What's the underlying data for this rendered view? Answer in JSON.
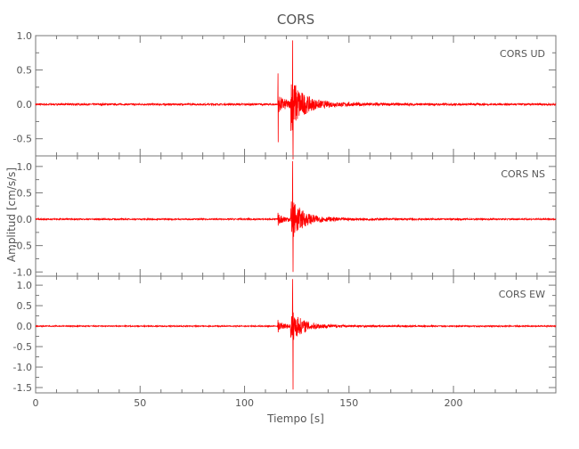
{
  "chart_data": {
    "type": "line",
    "title": "CORS",
    "xlabel": "Tiempo [s]",
    "ylabel": "Amplitud [cm/s/s]",
    "xlim": [
      0,
      249
    ],
    "xticks": [
      0,
      50,
      100,
      150,
      200
    ],
    "grid": false,
    "line_color": "#ff0000",
    "panels": [
      {
        "label": "CORS   UD",
        "ylim": [
          -0.75,
          1.0
        ],
        "yticks": [
          -0.5,
          0.0,
          0.5,
          1.0
        ],
        "events": [
          {
            "time": 116,
            "max": 0.45,
            "min": -0.55
          },
          {
            "time": 123,
            "max": 0.93,
            "min": -0.8
          }
        ]
      },
      {
        "label": "CORS   NS",
        "ylim": [
          -1.08,
          1.2
        ],
        "yticks": [
          -1.0,
          -0.5,
          0.0,
          0.5,
          1.0
        ],
        "events": [
          {
            "time": 116,
            "max": 0.12,
            "min": -0.12
          },
          {
            "time": 123,
            "max": 1.1,
            "min": -1.0
          }
        ]
      },
      {
        "label": "CORS   EW",
        "ylim": [
          -1.63,
          1.22
        ],
        "yticks": [
          -1.5,
          -1.0,
          -0.5,
          0.0,
          0.5,
          1.0
        ],
        "events": [
          {
            "time": 116,
            "max": 0.15,
            "min": -0.15
          },
          {
            "time": 123,
            "max": 1.15,
            "min": -1.55
          }
        ]
      }
    ]
  }
}
